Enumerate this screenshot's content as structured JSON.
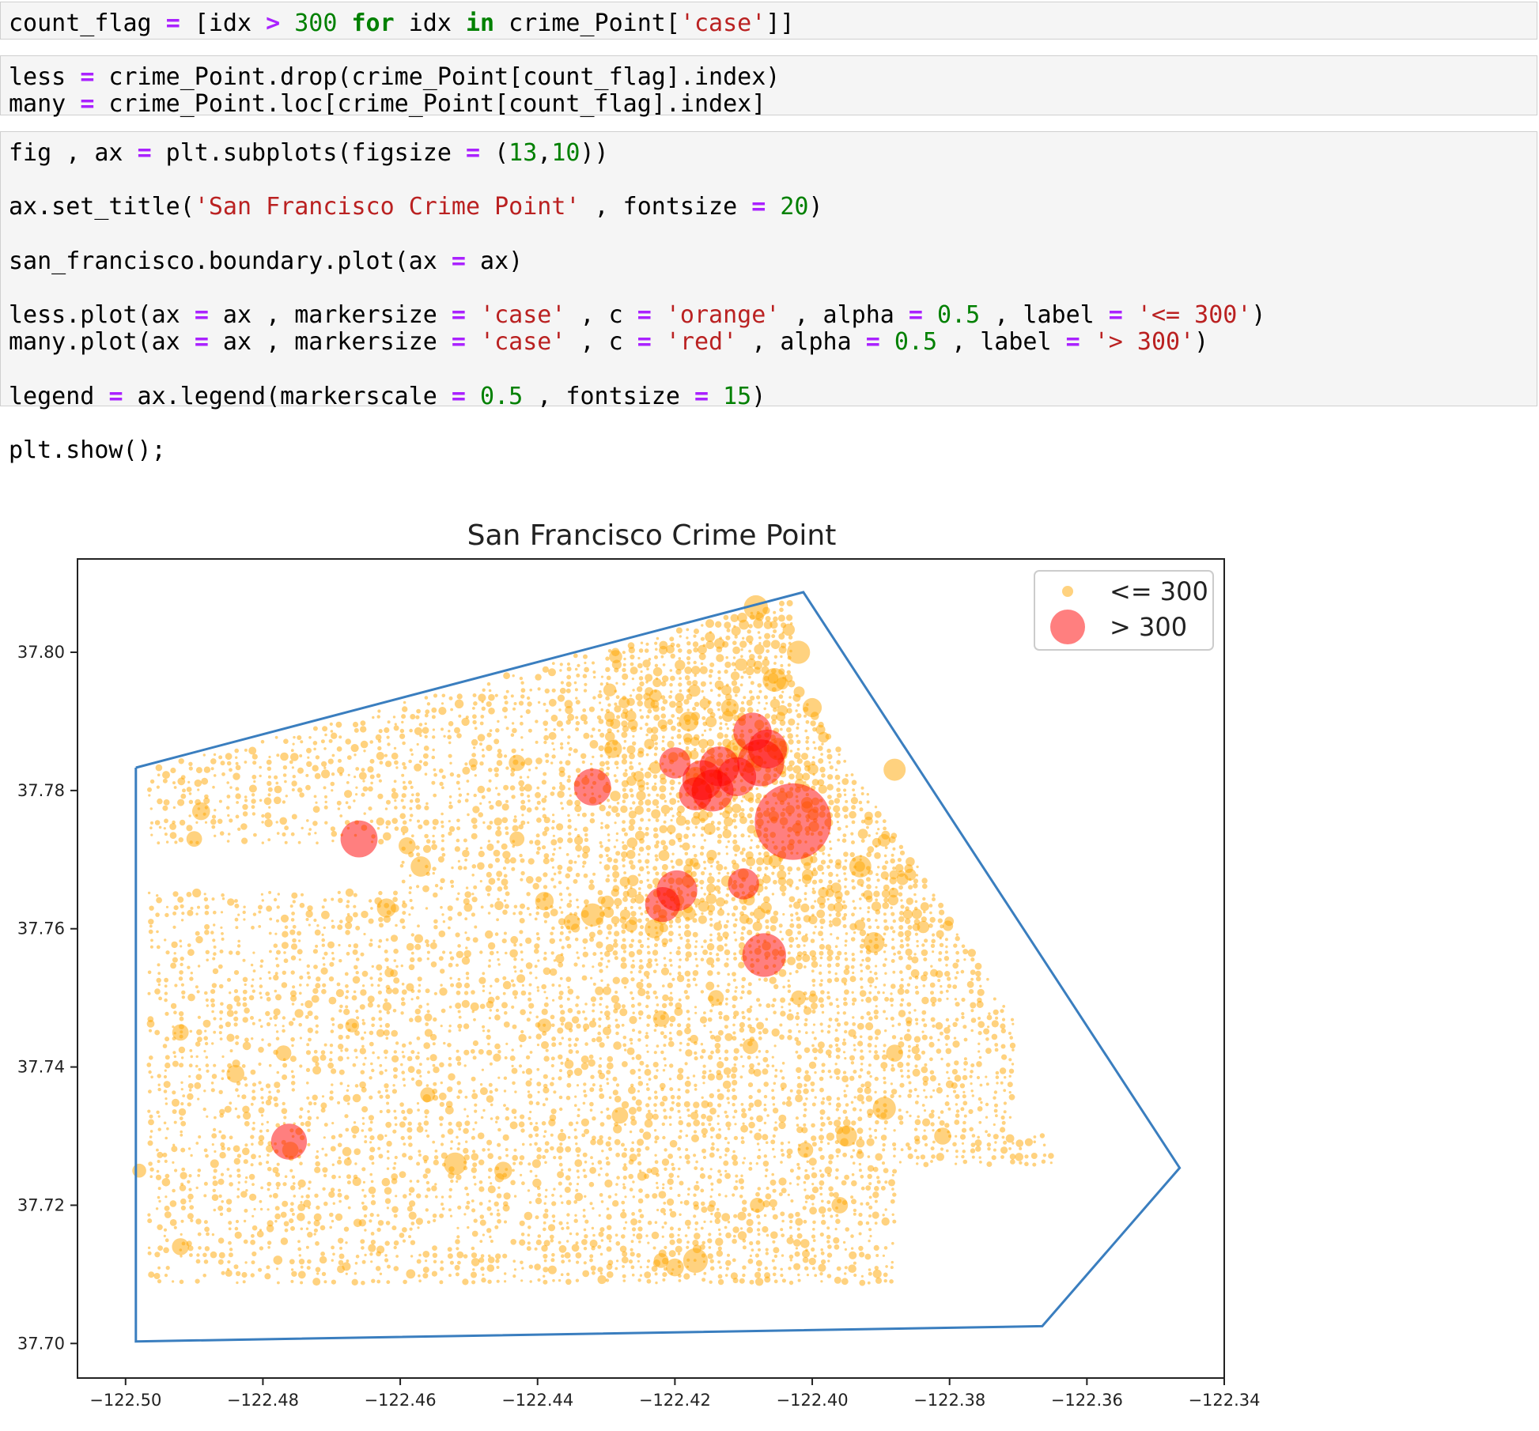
{
  "cells": [
    {
      "id": "cell-1",
      "lines": [
        [
          [
            "count_flag ",
            ""
          ],
          [
            "=",
            "op"
          ],
          [
            " [idx ",
            ""
          ],
          [
            ">",
            "op"
          ],
          [
            " ",
            ""
          ],
          [
            "300",
            "num"
          ],
          [
            " ",
            ""
          ],
          [
            "for",
            "kw"
          ],
          [
            " idx ",
            ""
          ],
          [
            "in",
            "kw"
          ],
          [
            " crime_Point[",
            ""
          ],
          [
            "'case'",
            "str"
          ],
          [
            "]]",
            ""
          ]
        ]
      ]
    },
    {
      "id": "cell-2",
      "lines": [
        [
          [
            "less ",
            ""
          ],
          [
            "=",
            "op"
          ],
          [
            " crime_Point.drop(crime_Point[count_flag].index)",
            ""
          ]
        ],
        [
          [
            "many ",
            ""
          ],
          [
            "=",
            "op"
          ],
          [
            " crime_Point.loc[crime_Point[count_flag].index]",
            ""
          ]
        ]
      ]
    },
    {
      "id": "cell-3",
      "lines": [
        [
          [
            "fig , ax ",
            ""
          ],
          [
            "=",
            "op"
          ],
          [
            " plt.subplots(figsize ",
            ""
          ],
          [
            "=",
            "op"
          ],
          [
            " (",
            ""
          ],
          [
            "13",
            "num"
          ],
          [
            ",",
            ""
          ],
          [
            "10",
            "num"
          ],
          [
            "))",
            ""
          ]
        ],
        [],
        [
          [
            "ax.set_title(",
            ""
          ],
          [
            "'San Francisco Crime Point'",
            "str"
          ],
          [
            " , fontsize ",
            ""
          ],
          [
            "=",
            "op"
          ],
          [
            " ",
            ""
          ],
          [
            "20",
            "num"
          ],
          [
            ")",
            ""
          ]
        ],
        [],
        [
          [
            "san_francisco.boundary.plot(ax ",
            ""
          ],
          [
            "=",
            "op"
          ],
          [
            " ax)",
            ""
          ]
        ],
        [],
        [
          [
            "less.plot(ax ",
            ""
          ],
          [
            "=",
            "op"
          ],
          [
            " ax , markersize ",
            ""
          ],
          [
            "=",
            "op"
          ],
          [
            " ",
            ""
          ],
          [
            "'case'",
            "str"
          ],
          [
            " , c ",
            ""
          ],
          [
            "=",
            "op"
          ],
          [
            " ",
            ""
          ],
          [
            "'orange'",
            "str"
          ],
          [
            " , alpha ",
            ""
          ],
          [
            "=",
            "op"
          ],
          [
            " ",
            ""
          ],
          [
            "0.5",
            "num"
          ],
          [
            " , label ",
            ""
          ],
          [
            "=",
            "op"
          ],
          [
            " ",
            ""
          ],
          [
            "'<= 300'",
            "str"
          ],
          [
            ")",
            ""
          ]
        ],
        [
          [
            "many.plot(ax ",
            ""
          ],
          [
            "=",
            "op"
          ],
          [
            " ax , markersize ",
            ""
          ],
          [
            "=",
            "op"
          ],
          [
            " ",
            ""
          ],
          [
            "'case'",
            "str"
          ],
          [
            " , c ",
            ""
          ],
          [
            "=",
            "op"
          ],
          [
            " ",
            ""
          ],
          [
            "'red'",
            "str"
          ],
          [
            " , alpha ",
            ""
          ],
          [
            "=",
            "op"
          ],
          [
            " ",
            ""
          ],
          [
            "0.5",
            "num"
          ],
          [
            " , label ",
            ""
          ],
          [
            "=",
            "op"
          ],
          [
            " ",
            ""
          ],
          [
            "'> 300'",
            "str"
          ],
          [
            ")",
            ""
          ]
        ],
        [],
        [
          [
            "legend ",
            ""
          ],
          [
            "=",
            "op"
          ],
          [
            " ax.legend(markerscale ",
            ""
          ],
          [
            "=",
            "op"
          ],
          [
            " ",
            ""
          ],
          [
            "0.5",
            "num"
          ],
          [
            " , fontsize ",
            ""
          ],
          [
            "=",
            "op"
          ],
          [
            " ",
            ""
          ],
          [
            "15",
            "num"
          ],
          [
            ")",
            ""
          ]
        ],
        [],
        [
          [
            "plt.show();",
            ""
          ]
        ]
      ]
    }
  ],
  "colors": {
    "boundary": "#3a7ebf",
    "less": "#ffa500",
    "many": "#ff0000",
    "keyword": "#008000",
    "operator": "#aa22ff",
    "string": "#ba2121"
  },
  "chart_data": {
    "type": "scatter",
    "title": "San Francisco Crime Point",
    "xlabel": "",
    "ylabel": "",
    "xlim": [
      -122.507,
      -122.34
    ],
    "ylim": [
      37.695,
      37.8135
    ],
    "xticks": [
      -122.5,
      -122.48,
      -122.46,
      -122.44,
      -122.42,
      -122.4,
      -122.38,
      -122.36,
      -122.34
    ],
    "xtick_labels": [
      "−122.50",
      "−122.48",
      "−122.46",
      "−122.44",
      "−122.42",
      "−122.40",
      "−122.38",
      "−122.36",
      "−122.34"
    ],
    "yticks": [
      37.7,
      37.72,
      37.74,
      37.76,
      37.78,
      37.8
    ],
    "ytick_labels": [
      "37.70",
      "37.72",
      "37.74",
      "37.76",
      "37.78",
      "37.80"
    ],
    "grid": false,
    "legend_position": "upper-right",
    "boundary": [
      [
        -122.4985,
        37.7833
      ],
      [
        -122.4013,
        37.8087
      ],
      [
        -122.3465,
        37.7254
      ],
      [
        -122.3665,
        37.7025
      ],
      [
        -122.4985,
        37.7003
      ],
      [
        -122.4985,
        37.7833
      ]
    ],
    "series": [
      {
        "name": "<= 300",
        "color": "orange",
        "alpha": 0.5,
        "cases": [
          [
            -122.4082,
            37.8065,
            240
          ],
          [
            -122.402,
            37.8,
            220
          ],
          [
            -122.4055,
            37.796,
            230
          ],
          [
            -122.388,
            37.783,
            200
          ],
          [
            -122.393,
            37.769,
            200
          ],
          [
            -122.391,
            37.758,
            180
          ],
          [
            -122.3895,
            37.734,
            220
          ],
          [
            -122.395,
            37.73,
            180
          ],
          [
            -122.388,
            37.742,
            120
          ],
          [
            -122.381,
            37.73,
            120
          ],
          [
            -122.452,
            37.726,
            210
          ],
          [
            -122.445,
            37.725,
            130
          ],
          [
            -122.428,
            37.733,
            110
          ],
          [
            -122.42,
            37.711,
            130
          ],
          [
            -122.417,
            37.712,
            250
          ],
          [
            -122.422,
            37.712,
            90
          ],
          [
            -122.432,
            37.762,
            220
          ],
          [
            -122.439,
            37.764,
            140
          ],
          [
            -122.462,
            37.763,
            150
          ],
          [
            -122.423,
            37.76,
            150
          ],
          [
            -122.435,
            37.761,
            110
          ],
          [
            -122.457,
            37.769,
            170
          ],
          [
            -122.459,
            37.772,
            120
          ],
          [
            -122.443,
            37.784,
            110
          ],
          [
            -122.429,
            37.786,
            130
          ],
          [
            -122.418,
            37.79,
            160
          ],
          [
            -122.412,
            37.792,
            130
          ],
          [
            -122.4,
            37.792,
            150
          ],
          [
            -122.489,
            37.777,
            130
          ],
          [
            -122.49,
            37.773,
            100
          ],
          [
            -122.498,
            37.725,
            80
          ],
          [
            -122.492,
            37.714,
            120
          ],
          [
            -122.492,
            37.745,
            110
          ],
          [
            -122.484,
            37.739,
            130
          ],
          [
            -122.476,
            37.728,
            110
          ],
          [
            -122.477,
            37.742,
            100
          ],
          [
            -122.443,
            37.773,
            90
          ],
          [
            -122.439,
            37.746,
            80
          ],
          [
            -122.467,
            37.746,
            80
          ],
          [
            -122.402,
            37.75,
            90
          ],
          [
            -122.409,
            37.743,
            100
          ],
          [
            -122.422,
            37.747,
            110
          ],
          [
            -122.414,
            37.75,
            100
          ],
          [
            -122.401,
            37.728,
            100
          ],
          [
            -122.396,
            37.72,
            110
          ],
          [
            -122.408,
            37.72,
            90
          ],
          [
            -122.456,
            37.736,
            90
          ],
          [
            -122.405,
            37.786,
            200
          ],
          [
            -122.411,
            37.786,
            180
          ],
          [
            -122.417,
            37.782,
            160
          ]
        ]
      },
      {
        "name": "> 300",
        "color": "red",
        "alpha": 0.5,
        "cases": [
          [
            -122.4028,
            37.7755,
            2400
          ],
          [
            -122.4087,
            37.7885,
            600
          ],
          [
            -122.4065,
            37.786,
            620
          ],
          [
            -122.4075,
            37.784,
            900
          ],
          [
            -122.4135,
            37.7835,
            650
          ],
          [
            -122.416,
            37.7815,
            650
          ],
          [
            -122.4145,
            37.78,
            720
          ],
          [
            -122.411,
            37.782,
            620
          ],
          [
            -122.417,
            37.7795,
            450
          ],
          [
            -122.42,
            37.784,
            400
          ],
          [
            -122.432,
            37.7805,
            560
          ],
          [
            -122.466,
            37.773,
            560
          ],
          [
            -122.4762,
            37.7292,
            530
          ],
          [
            -122.4197,
            37.7655,
            680
          ],
          [
            -122.4218,
            37.7635,
            500
          ],
          [
            -122.41,
            37.7665,
            400
          ],
          [
            -122.407,
            37.7562,
            780
          ]
        ]
      }
    ]
  }
}
